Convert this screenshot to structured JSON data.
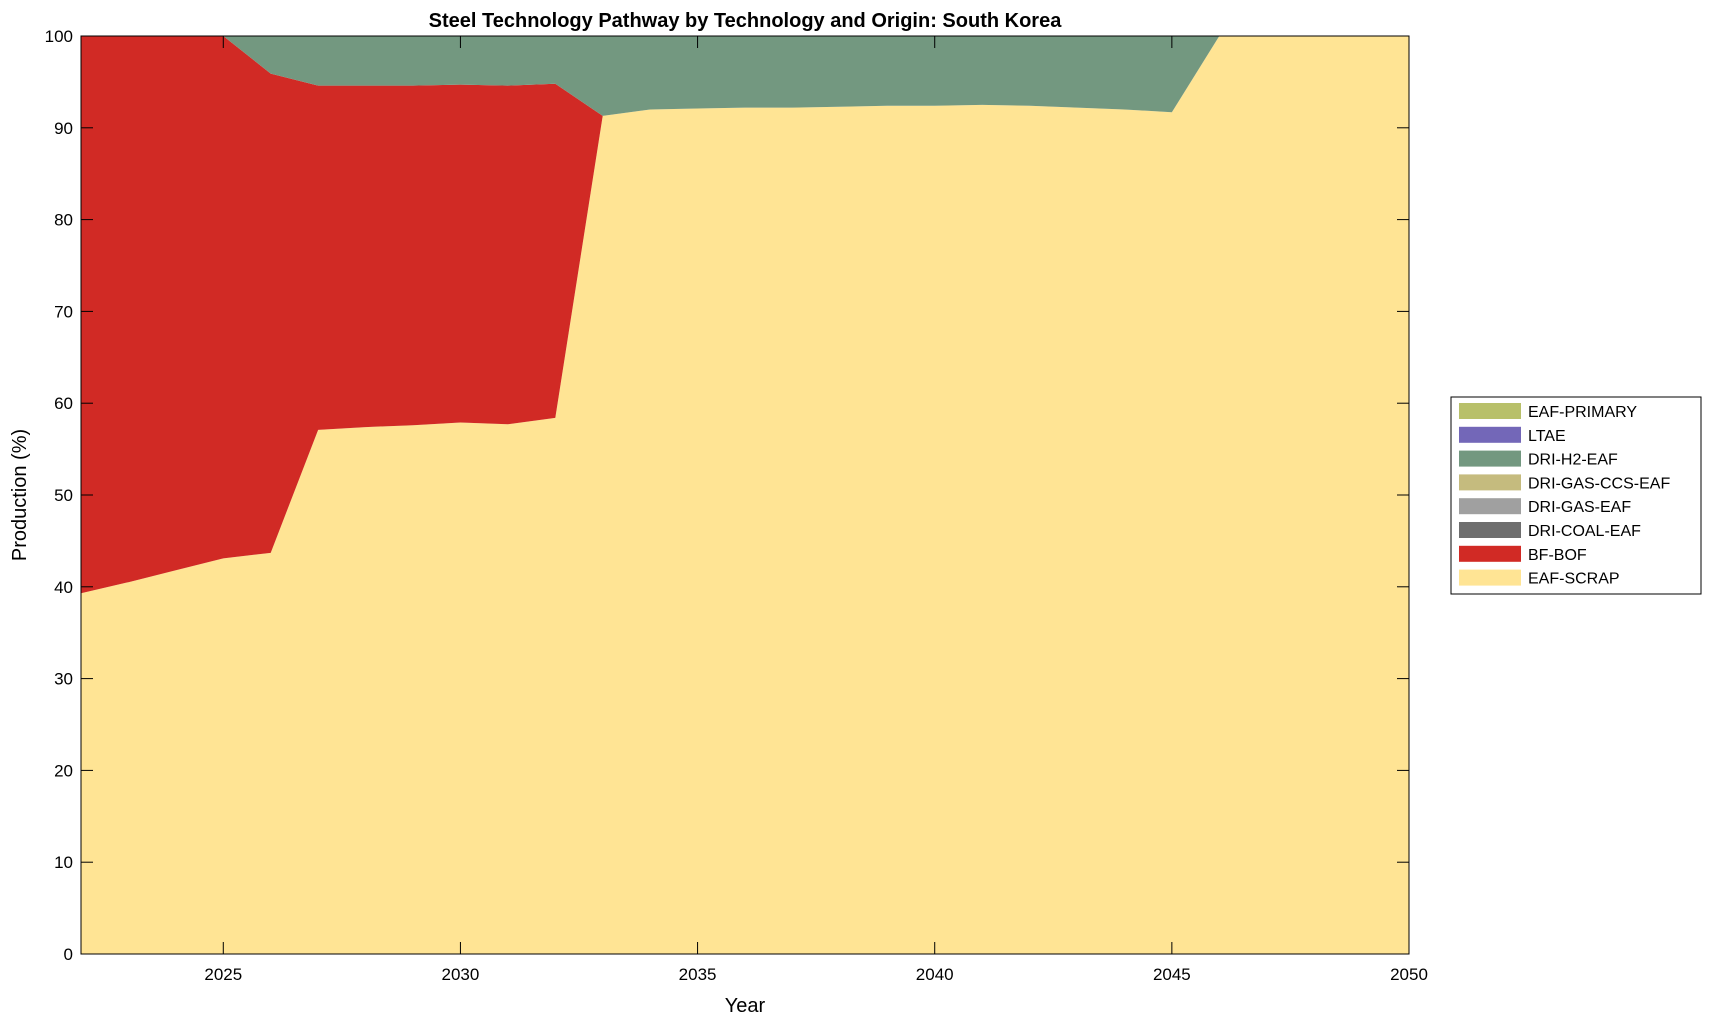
{
  "chart_data": {
    "type": "area",
    "title": "Steel Technology Pathway by Technology and Origin: South Korea",
    "xlabel": "Year",
    "ylabel": "Production (%)",
    "xlim": [
      2022,
      2050
    ],
    "ylim": [
      0,
      100
    ],
    "x_ticks": [
      2025,
      2030,
      2035,
      2040,
      2045,
      2050
    ],
    "y_ticks": [
      0,
      10,
      20,
      30,
      40,
      50,
      60,
      70,
      80,
      90,
      100
    ],
    "stacked": true,
    "grid": false,
    "legend_position": "right",
    "x": [
      2022,
      2023,
      2024,
      2025,
      2026,
      2027,
      2028,
      2029,
      2030,
      2031,
      2032,
      2033,
      2034,
      2035,
      2036,
      2037,
      2038,
      2039,
      2040,
      2041,
      2042,
      2043,
      2044,
      2045,
      2046,
      2047,
      2048,
      2049,
      2050
    ],
    "series": [
      {
        "name": "EAF-SCRAP",
        "color": "#FFE494",
        "values": [
          39.3,
          40.5,
          41.8,
          43.1,
          43.7,
          57.1,
          57.4,
          57.6,
          57.9,
          57.7,
          58.4,
          91.3,
          92.0,
          92.1,
          92.2,
          92.2,
          92.3,
          92.4,
          92.4,
          92.5,
          92.4,
          92.2,
          92.0,
          91.7,
          100,
          100,
          100,
          100,
          100
        ]
      },
      {
        "name": "BF-BOF",
        "color": "#D12A25",
        "values": [
          60.7,
          59.5,
          58.2,
          56.9,
          52.2,
          37.5,
          37.2,
          37.0,
          36.8,
          36.9,
          36.4,
          0,
          0,
          0,
          0,
          0,
          0,
          0,
          0,
          0,
          0,
          0,
          0,
          0,
          0,
          0,
          0,
          0,
          0
        ]
      },
      {
        "name": "DRI-COAL-EAF",
        "color": "#6E6E6E",
        "values": [
          0,
          0,
          0,
          0,
          0,
          0,
          0,
          0,
          0,
          0,
          0,
          0,
          0,
          0,
          0,
          0,
          0,
          0,
          0,
          0,
          0,
          0,
          0,
          0,
          0,
          0,
          0,
          0,
          0
        ]
      },
      {
        "name": "DRI-GAS-EAF",
        "color": "#A0A0A0",
        "values": [
          0,
          0,
          0,
          0,
          0,
          0,
          0,
          0,
          0,
          0,
          0,
          0,
          0,
          0,
          0,
          0,
          0,
          0,
          0,
          0,
          0,
          0,
          0,
          0,
          0,
          0,
          0,
          0,
          0
        ]
      },
      {
        "name": "DRI-GAS-CCS-EAF",
        "color": "#C5BB7E",
        "values": [
          0,
          0,
          0,
          0,
          0,
          0,
          0,
          0,
          0,
          0,
          0,
          0,
          0,
          0,
          0,
          0,
          0,
          0,
          0,
          0,
          0,
          0,
          0,
          0,
          0,
          0,
          0,
          0,
          0
        ]
      },
      {
        "name": "DRI-H2-EAF",
        "color": "#739880",
        "values": [
          0,
          0,
          0,
          0,
          4.1,
          5.4,
          5.4,
          5.4,
          5.3,
          5.4,
          5.2,
          8.7,
          8.0,
          7.9,
          7.8,
          7.8,
          7.7,
          7.6,
          7.6,
          7.5,
          7.6,
          7.8,
          8.0,
          8.3,
          0,
          0,
          0,
          0,
          0
        ]
      },
      {
        "name": "LTAE",
        "color": "#7367B8",
        "values": [
          0,
          0,
          0,
          0,
          0,
          0,
          0,
          0,
          0,
          0,
          0,
          0,
          0,
          0,
          0,
          0,
          0,
          0,
          0,
          0,
          0,
          0,
          0,
          0,
          0,
          0,
          0,
          0,
          0
        ]
      },
      {
        "name": "EAF-PRIMARY",
        "color": "#B8C06A",
        "values": [
          0,
          0,
          0,
          0,
          0,
          0,
          0,
          0,
          0,
          0,
          0,
          0,
          0,
          0,
          0,
          0,
          0,
          0,
          0,
          0,
          0,
          0,
          0,
          0,
          0,
          0,
          0,
          0,
          0
        ]
      }
    ],
    "legend_order": [
      "EAF-PRIMARY",
      "LTAE",
      "DRI-H2-EAF",
      "DRI-GAS-CCS-EAF",
      "DRI-GAS-EAF",
      "DRI-COAL-EAF",
      "BF-BOF",
      "EAF-SCRAP"
    ]
  }
}
